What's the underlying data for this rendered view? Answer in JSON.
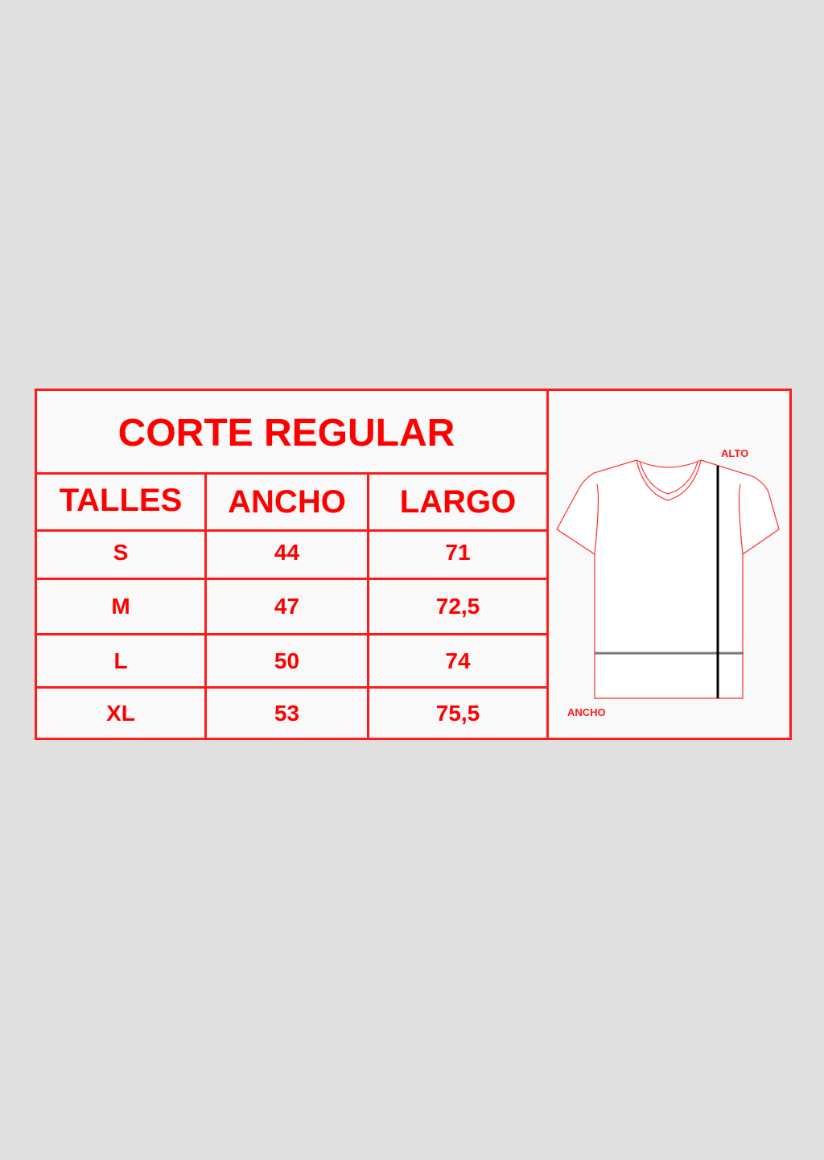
{
  "title": "CORTE REGULAR",
  "headers": [
    "TALLES",
    "ANCHO",
    "LARGO"
  ],
  "rows": [
    [
      "S",
      "44",
      "71"
    ],
    [
      "M",
      "47",
      "72,5"
    ],
    [
      "L",
      "50",
      "74"
    ],
    [
      "XL",
      "53",
      "75,5"
    ]
  ],
  "diagram": {
    "alto_label": "ALTO",
    "ancho_label": "ANCHO"
  },
  "colors": {
    "accent": "#ff0000",
    "background": "#e0e0e0",
    "panel": "#f9f9f9"
  }
}
